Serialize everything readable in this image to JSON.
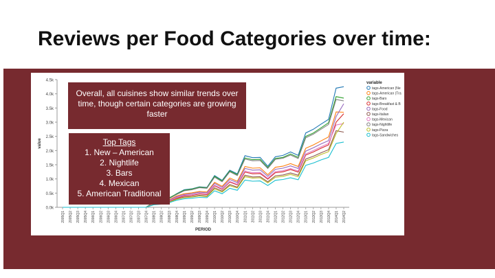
{
  "slide": {
    "title": "Reviews per Food Categories over time:",
    "note_overall": "Overall, all cuisines show similar trends over time, though certain categories are growing faster",
    "top_tags": {
      "heading": "Top Tags",
      "items": [
        "1. New – American",
        "2. Nightlife",
        "3. Bars",
        "4. Mexican",
        "5. American Traditional"
      ]
    },
    "colors": {
      "band": "#772a2f",
      "note_bg": "#772a2f",
      "note_text": "#ffffff"
    }
  },
  "chart_data": {
    "type": "line",
    "xlabel": "PERIOD",
    "ylabel": "value",
    "ylim": [
      0,
      4500
    ],
    "y_ticks": [
      "0.0k",
      "0.5k",
      "1.0k",
      "1.5k",
      "2.0k",
      "2.5k",
      "3.0k",
      "3.5k",
      "4.0k",
      "4.5k"
    ],
    "legend_title": "variable",
    "legend_position": "right",
    "grid": false,
    "x": [
      "2005Q1",
      "2005Q2",
      "2005Q3",
      "2005Q4",
      "2006Q1",
      "2006Q2",
      "2006Q3",
      "2006Q4",
      "2007Q1",
      "2007Q2",
      "2007Q3",
      "2007Q4",
      "2008Q1",
      "2008Q2",
      "2008Q3",
      "2008Q4",
      "2009Q1",
      "2009Q2",
      "2009Q3",
      "2009Q4",
      "2010Q1",
      "2010Q2",
      "2010Q3",
      "2010Q4",
      "2011Q1",
      "2011Q2",
      "2011Q3",
      "2011Q4",
      "2012Q1",
      "2012Q2",
      "2012Q3",
      "2012Q4",
      "2013Q1",
      "2013Q2",
      "2013Q3",
      "2013Q4",
      "2014Q1",
      "2014Q2"
    ],
    "series": [
      {
        "name": "tags-American (Ne",
        "color": "#1f77b4",
        "values": [
          0,
          0,
          0,
          0,
          0,
          0,
          0,
          0,
          0,
          0,
          0,
          0,
          180,
          220,
          310,
          480,
          620,
          650,
          720,
          700,
          1120,
          950,
          1310,
          1180,
          1820,
          1750,
          1760,
          1450,
          1780,
          1830,
          1950,
          1830,
          2620,
          2750,
          2930,
          3100,
          4200,
          4250
        ]
      },
      {
        "name": "tags-American (Tra",
        "color": "#ff7f0e",
        "values": [
          0,
          0,
          0,
          0,
          0,
          0,
          0,
          0,
          0,
          0,
          0,
          0,
          150,
          180,
          260,
          400,
          480,
          510,
          560,
          540,
          880,
          740,
          1030,
          920,
          1440,
          1380,
          1390,
          1150,
          1410,
          1450,
          1540,
          1440,
          2080,
          2200,
          2340,
          2480,
          3360,
          3350
        ]
      },
      {
        "name": "tags-Bars",
        "color": "#2ca02c",
        "values": [
          0,
          0,
          0,
          0,
          0,
          0,
          0,
          0,
          0,
          0,
          0,
          0,
          190,
          240,
          330,
          470,
          600,
          640,
          710,
          690,
          1090,
          930,
          1280,
          1150,
          1740,
          1680,
          1690,
          1400,
          1720,
          1760,
          1880,
          1760,
          2500,
          2620,
          2800,
          2980,
          3900,
          3850
        ]
      },
      {
        "name": "tags-Breakfast & B",
        "color": "#d62728",
        "values": [
          0,
          0,
          0,
          0,
          0,
          0,
          0,
          0,
          0,
          0,
          0,
          0,
          120,
          150,
          210,
          320,
          400,
          420,
          470,
          450,
          760,
          630,
          890,
          790,
          1240,
          1180,
          1190,
          990,
          1220,
          1250,
          1330,
          1240,
          1840,
          1950,
          2080,
          2200,
          3000,
          3300
        ]
      },
      {
        "name": "tags-Food",
        "color": "#9467bd",
        "values": [
          0,
          0,
          0,
          0,
          0,
          0,
          0,
          0,
          0,
          0,
          0,
          0,
          130,
          170,
          240,
          370,
          450,
          480,
          530,
          510,
          840,
          700,
          980,
          870,
          1370,
          1310,
          1320,
          1090,
          1340,
          1380,
          1460,
          1370,
          1980,
          2100,
          2230,
          2350,
          3200,
          3650
        ]
      },
      {
        "name": "tags-Italian",
        "color": "#8c564b",
        "values": [
          0,
          0,
          0,
          0,
          0,
          0,
          0,
          0,
          0,
          0,
          0,
          0,
          110,
          140,
          190,
          290,
          360,
          380,
          420,
          400,
          690,
          570,
          800,
          710,
          1130,
          1070,
          1080,
          900,
          1110,
          1140,
          1210,
          1130,
          1700,
          1800,
          1920,
          2030,
          2700,
          2650
        ]
      },
      {
        "name": "tags-Mexican",
        "color": "#e377c2",
        "values": [
          0,
          0,
          0,
          0,
          0,
          0,
          0,
          0,
          0,
          0,
          0,
          0,
          120,
          150,
          220,
          340,
          420,
          440,
          490,
          470,
          780,
          650,
          910,
          810,
          1280,
          1220,
          1230,
          1020,
          1260,
          1290,
          1370,
          1280,
          1880,
          2000,
          2130,
          2250,
          2900,
          2950
        ]
      },
      {
        "name": "tags-Nightlife",
        "color": "#7f7f7f",
        "values": [
          0,
          0,
          0,
          0,
          0,
          0,
          0,
          0,
          0,
          0,
          0,
          0,
          170,
          210,
          300,
          450,
          580,
          620,
          690,
          670,
          1060,
          900,
          1250,
          1120,
          1700,
          1640,
          1650,
          1370,
          1690,
          1730,
          1840,
          1720,
          2450,
          2580,
          2750,
          2920,
          3800,
          3750
        ]
      },
      {
        "name": "tags-Pizza",
        "color": "#bcbd22",
        "values": [
          0,
          0,
          0,
          0,
          0,
          0,
          0,
          0,
          0,
          0,
          0,
          0,
          100,
          130,
          180,
          280,
          340,
          360,
          400,
          380,
          650,
          540,
          760,
          680,
          1080,
          1030,
          1040,
          860,
          1060,
          1090,
          1160,
          1080,
          1640,
          1740,
          1860,
          1960,
          2600,
          3000
        ]
      },
      {
        "name": "tags-Sandwiches",
        "color": "#17becf",
        "values": [
          0,
          0,
          0,
          0,
          0,
          0,
          0,
          0,
          0,
          0,
          0,
          0,
          90,
          110,
          160,
          250,
          300,
          320,
          350,
          340,
          580,
          480,
          670,
          600,
          960,
          920,
          930,
          770,
          950,
          980,
          1040,
          970,
          1480,
          1560,
          1670,
          1760,
          2250,
          2300
        ]
      }
    ]
  }
}
